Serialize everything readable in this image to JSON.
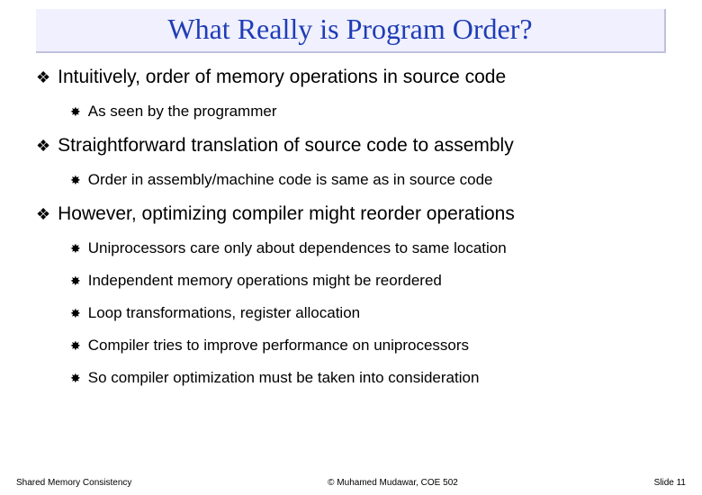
{
  "title": "What Really is Program Order?",
  "title_color": "#1f3db5",
  "title_bg": "#f0f0ff",
  "background": "#ffffff",
  "bullets": [
    {
      "text": "Intuitively, order of memory operations in source code",
      "sub": [
        "As seen by the programmer"
      ]
    },
    {
      "text": "Straightforward translation of source code to assembly",
      "sub": [
        "Order in assembly/machine code is same as in source code"
      ]
    },
    {
      "text": "However, optimizing compiler might reorder operations",
      "sub": [
        "Uniprocessors care only about dependences to same location",
        "Independent memory operations might be reordered",
        "Loop transformations, register allocation",
        "Compiler tries to improve performance on uniprocessors",
        "So compiler optimization must be taken into consideration"
      ]
    }
  ],
  "footer": {
    "left": "Shared Memory Consistency",
    "center": "© Muhamed Mudawar, COE 502",
    "right": "Slide 11"
  },
  "typography": {
    "title_fontsize": 32,
    "l1_fontsize": 21,
    "l2_fontsize": 17,
    "footer_fontsize": 10
  },
  "glyphs": {
    "l1_bullet": "❖",
    "l2_bullet": "✸"
  }
}
